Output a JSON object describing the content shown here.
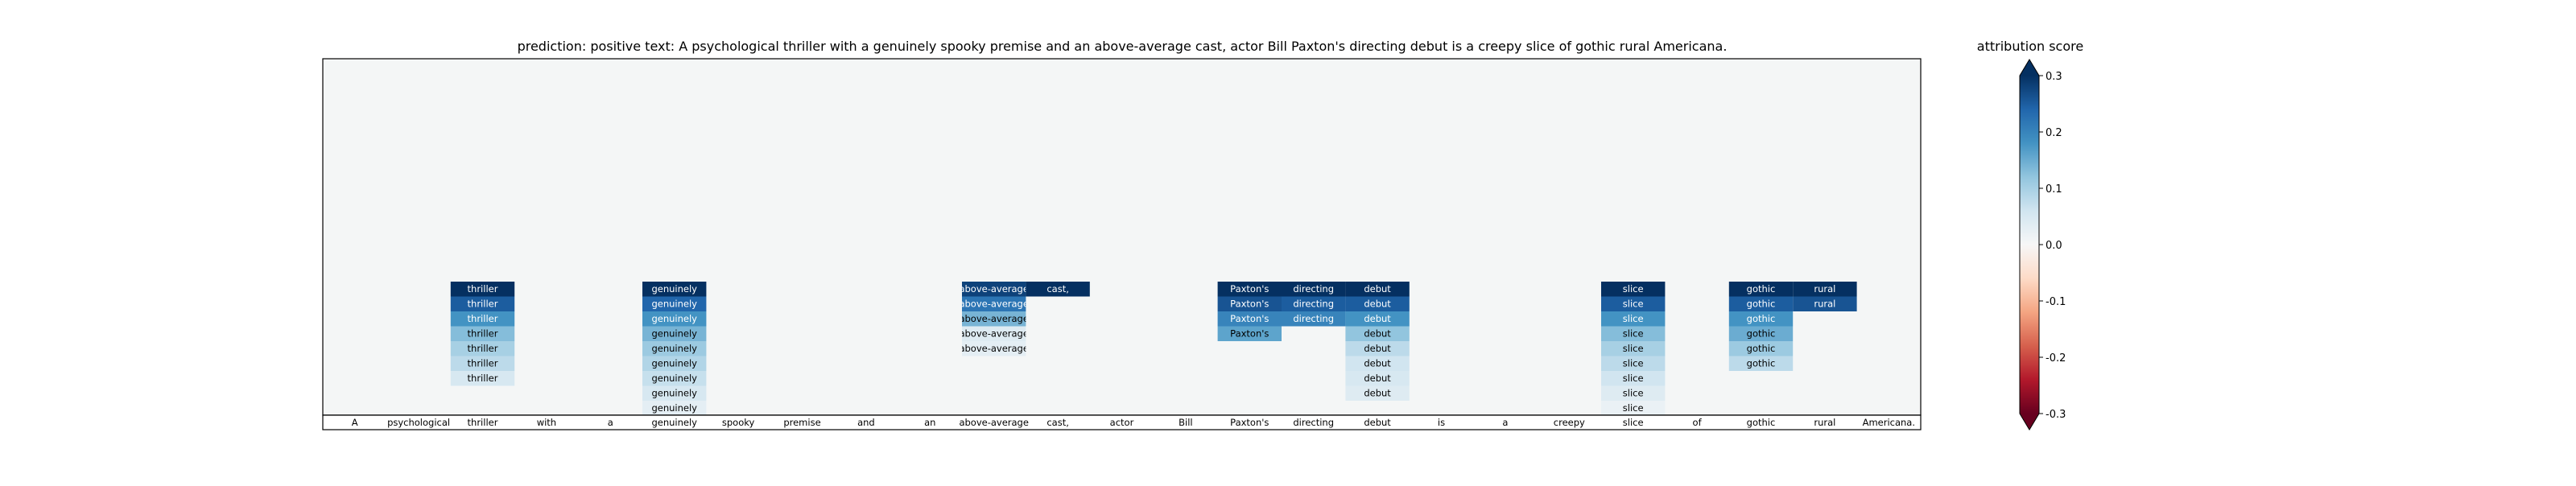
{
  "chart_data": {
    "type": "heatmap",
    "title": "prediction:  positive     text:  A psychological thriller with a genuinely spooky premise and an above-average cast, actor Bill Paxton's directing debut is a creepy slice of gothic rural Americana.",
    "tokens": [
      "A",
      "psychological",
      "thriller",
      "with",
      "a",
      "genuinely",
      "spooky",
      "premise",
      "and",
      "an",
      "above-average",
      "cast,",
      "actor",
      "Bill",
      "Paxton's",
      "directing",
      "debut",
      "is",
      "a",
      "creepy",
      "slice",
      "of",
      "gothic",
      "rural",
      "Americana."
    ],
    "columns": [
      {
        "label": "thriller",
        "values": [
          0.3,
          0.25,
          0.18,
          0.13,
          0.1,
          0.08,
          0.05
        ]
      },
      {
        "label": "genuinely",
        "values": [
          0.3,
          0.24,
          0.18,
          0.14,
          0.11,
          0.09,
          0.07,
          0.05,
          0.03
        ]
      },
      {
        "label": "above-average",
        "values": [
          0.28,
          0.22,
          0.14,
          0.04,
          0.03
        ]
      },
      {
        "label": "cast,",
        "values": [
          0.3
        ]
      },
      {
        "label": "Paxton's",
        "values": [
          0.3,
          0.26,
          0.2,
          0.16
        ]
      },
      {
        "label": "directing",
        "values": [
          0.3,
          0.25,
          0.2
        ]
      },
      {
        "label": "debut",
        "values": [
          0.3,
          0.25,
          0.18,
          0.12,
          0.08,
          0.06,
          0.05,
          0.04
        ]
      },
      {
        "label": "slice",
        "values": [
          0.3,
          0.25,
          0.18,
          0.13,
          0.1,
          0.08,
          0.06,
          0.04,
          0.02
        ]
      },
      {
        "label": "gothic",
        "values": [
          0.3,
          0.25,
          0.18,
          0.15,
          0.11,
          0.08
        ]
      },
      {
        "label": "rural",
        "values": [
          0.3,
          0.26
        ]
      }
    ],
    "colorbar": {
      "label": "attribution score",
      "min": -0.3,
      "max": 0.3,
      "ticks": [
        "-0.3",
        "-0.2",
        "-0.1",
        "0.0",
        "0.1",
        "0.2",
        "0.3"
      ],
      "extend": "both"
    },
    "cmap": "RdBu",
    "grid": false
  }
}
